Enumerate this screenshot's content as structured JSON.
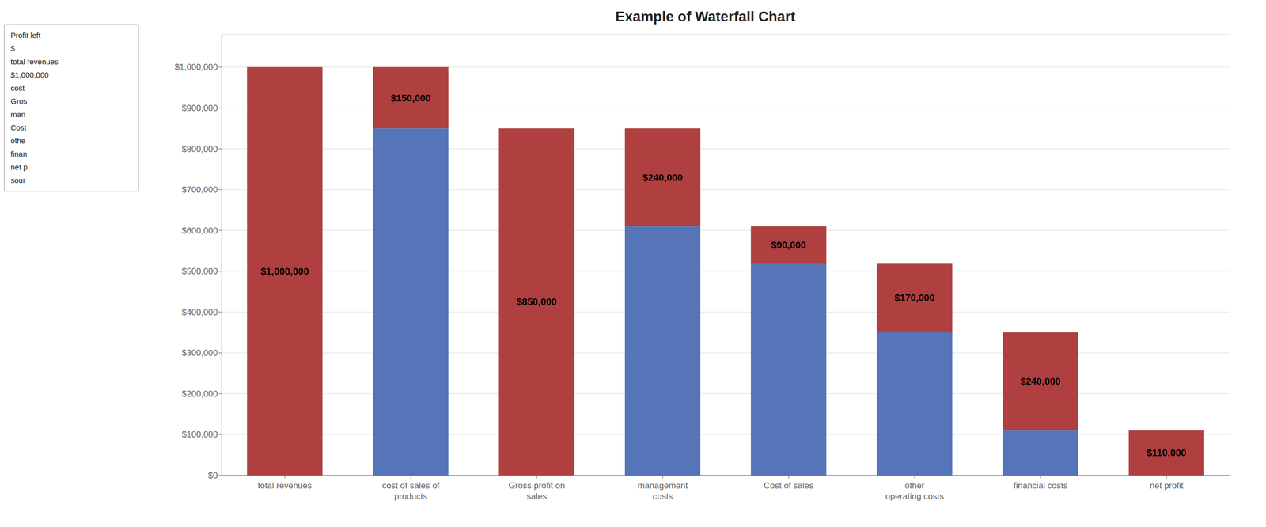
{
  "chart_data": {
    "type": "bar",
    "title": "Example of Waterfall Chart",
    "categories": [
      "total revenues",
      "cost of sales of\nproducts",
      "Gross profit on\nsales",
      "management\ncosts",
      "Cost of sales",
      "other\noperating costs",
      "financial costs",
      "net profit"
    ],
    "stacked": true,
    "series": [
      {
        "color": "#5575B8",
        "values": [
          0,
          850000,
          0,
          610000,
          520000,
          350000,
          110000,
          0
        ]
      },
      {
        "color": "#B04040",
        "values": [
          1000000,
          150000,
          850000,
          240000,
          90000,
          170000,
          240000,
          110000
        ],
        "data_labels": true,
        "value_labels": [
          "$1,000,000",
          "$150,000",
          "$850,000",
          "$240,000",
          "$90,000",
          "$170,000",
          "$240,000",
          "$110,000"
        ]
      }
    ],
    "ylim": [
      0,
      1080000
    ],
    "yticks": [
      {
        "value": 0,
        "label": "$0"
      },
      {
        "value": 100000,
        "label": "$100,000"
      },
      {
        "value": 200000,
        "label": "$200,000"
      },
      {
        "value": 300000,
        "label": "$300,000"
      },
      {
        "value": 400000,
        "label": "$400,000"
      },
      {
        "value": 500000,
        "label": "$500,000"
      },
      {
        "value": 600000,
        "label": "$600,000"
      },
      {
        "value": 700000,
        "label": "$700,000"
      },
      {
        "value": 800000,
        "label": "$800,000"
      },
      {
        "value": 900000,
        "label": "$900,000"
      },
      {
        "value": 1000000,
        "label": "$1,000,000"
      }
    ],
    "grid": true,
    "annotations": [
      "Profit left",
      "$",
      "total revenues",
      "$1,000,000",
      "cost",
      "Gros",
      "man",
      "Cost",
      "othe",
      "finan",
      "net p",
      "sour"
    ]
  }
}
